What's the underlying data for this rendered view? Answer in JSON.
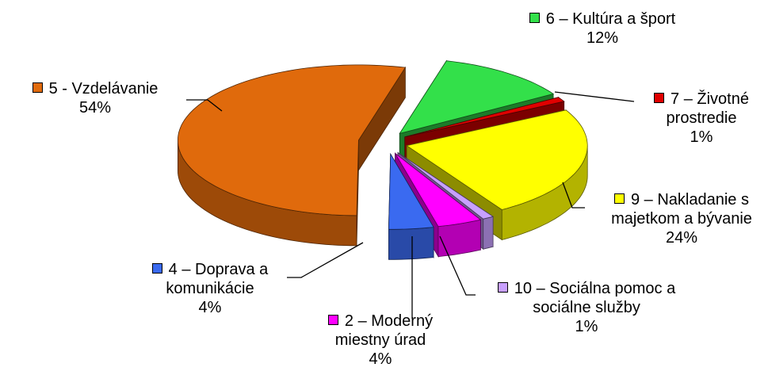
{
  "chart_data": {
    "type": "pie3d",
    "categories": [
      "6 – Kultúra a šport",
      "7 – Životné prostredie",
      "9 – Nakladanie s majetkom a bývanie",
      "10 – Sociálna pomoc a sociálne služby",
      "2 – Moderný miestny úrad",
      "4 – Doprava a komunikácie",
      "5 - Vzdelávanie"
    ],
    "values": [
      12,
      1,
      24,
      1,
      4,
      4,
      54
    ],
    "value_labels": [
      "12%",
      "1%",
      "24%",
      "1%",
      "4%",
      "4%",
      "54%"
    ],
    "colors": [
      "#33e04a",
      "#e00000",
      "#ffff00",
      "#c8a0ff",
      "#ff00ff",
      "#3a6af0",
      "#e06a0c"
    ]
  }
}
